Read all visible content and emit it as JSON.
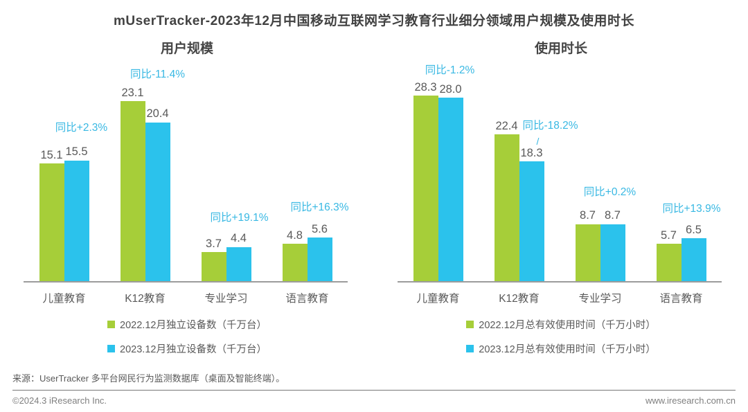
{
  "page": {
    "title": "mUserTracker-2023年12月中国移动互联网学习教育行业细分领域用户规模及使用时长"
  },
  "colors": {
    "series_2022_green": "#A6CE39",
    "series_2023_blue": "#2BC2EC",
    "annotation_cyan": "#38B8E3",
    "axis_line_gray": "#9C9C9C",
    "label_gray": "#595959"
  },
  "chart_data": [
    {
      "type": "bar",
      "title": "用户规模",
      "categories": [
        "儿童教育",
        "K12教育",
        "专业学习",
        "语言教育"
      ],
      "series": [
        {
          "name": "2022.12月独立设备数（千万台）",
          "color": "#A6CE39",
          "values": [
            15.1,
            23.1,
            3.7,
            4.8
          ]
        },
        {
          "name": "2023.12月独立设备数（千万台）",
          "color": "#2BC2EC",
          "values": [
            15.5,
            20.4,
            4.4,
            5.6
          ]
        }
      ],
      "annotations": [
        "同比+2.3%",
        "同比-11.4%",
        "同比+19.1%",
        "同比+16.3%"
      ],
      "ylim": [
        0,
        24
      ],
      "grid": false,
      "legend_position": "bottom"
    },
    {
      "type": "bar",
      "title": "使用时长",
      "categories": [
        "儿童教育",
        "K12教育",
        "专业学习",
        "语言教育"
      ],
      "series": [
        {
          "name": "2022.12月总有效使用时间（千万小时）",
          "color": "#A6CE39",
          "values": [
            28.3,
            22.4,
            8.7,
            5.7
          ]
        },
        {
          "name": "2023.12月总有效使用时间（千万小时）",
          "color": "#2BC2EC",
          "values": [
            28.0,
            18.3,
            8.7,
            6.5
          ]
        }
      ],
      "annotations": [
        "同比-1.2%",
        "同比-18.2%",
        "同比+0.2%",
        "同比+13.9%"
      ],
      "ylim": [
        0,
        28.5
      ],
      "grid": false,
      "legend_position": "bottom"
    }
  ],
  "footer": {
    "source": "来源：UserTracker 多平台网民行为监测数据库（桌面及智能终端）。",
    "copyright": "©2024.3 iResearch Inc.",
    "url": "www.iresearch.com.cn"
  }
}
